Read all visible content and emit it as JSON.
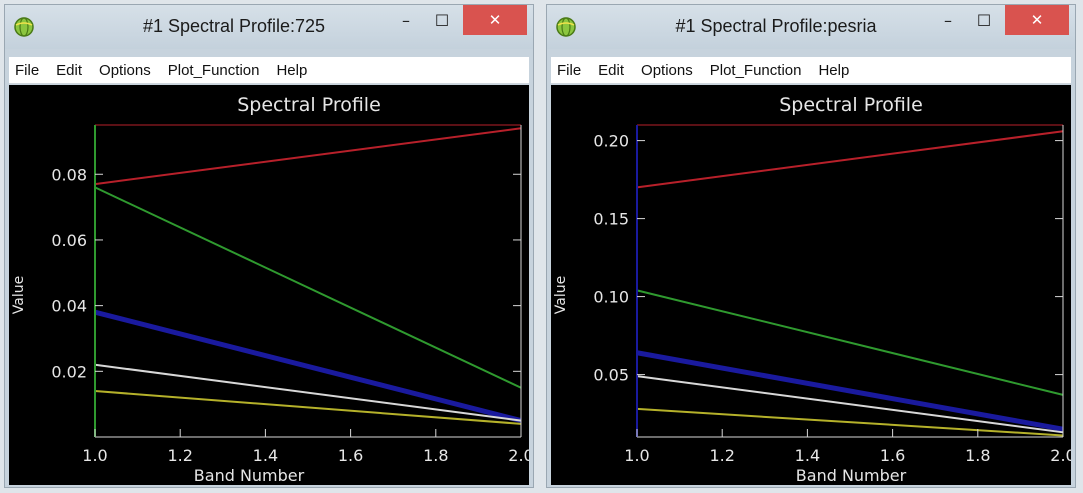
{
  "windows": [
    {
      "title": "#1 Spectral Profile:725",
      "controls": {
        "minimize": "–",
        "maximize": "☐",
        "close": "✕"
      },
      "menu": [
        "File",
        "Edit",
        "Options",
        "Plot_Function",
        "Help"
      ],
      "plot_title": "Spectral Profile",
      "xlabel": "Band Number",
      "ylabel": "Value",
      "y_ticks": [
        "0.02",
        "0.04",
        "0.06",
        "0.08"
      ],
      "x_ticks": [
        "1.0",
        "1.2",
        "1.4",
        "1.6",
        "1.8",
        "2.0"
      ]
    },
    {
      "title": "#1 Spectral Profile:pesria",
      "controls": {
        "minimize": "–",
        "maximize": "☐",
        "close": "✕"
      },
      "menu": [
        "File",
        "Edit",
        "Options",
        "Plot_Function",
        "Help"
      ],
      "plot_title": "Spectral Profile",
      "xlabel": "Band Number",
      "ylabel": "Value",
      "y_ticks": [
        "0.05",
        "0.10",
        "0.15",
        "0.20"
      ],
      "x_ticks": [
        "1.0",
        "1.2",
        "1.4",
        "1.6",
        "1.8",
        "2.0"
      ]
    }
  ],
  "chart_data": [
    {
      "type": "line",
      "title": "Spectral Profile",
      "xlabel": "Band Number",
      "ylabel": "Value",
      "xlim": [
        1.0,
        2.0
      ],
      "ylim": [
        0.0,
        0.095
      ],
      "y_ticks": [
        0.02,
        0.04,
        0.06,
        0.08
      ],
      "x_ticks": [
        1.0,
        1.2,
        1.4,
        1.6,
        1.8,
        2.0
      ],
      "x": [
        1.0,
        2.0
      ],
      "series": [
        {
          "color": "#b8202a",
          "values": [
            0.077,
            0.094
          ]
        },
        {
          "color": "#2f9a2f",
          "values": [
            0.076,
            0.015
          ]
        },
        {
          "color": "#1a1a9e",
          "values": [
            0.038,
            0.005
          ]
        },
        {
          "color": "#d8d8d8",
          "values": [
            0.022,
            0.005
          ]
        },
        {
          "color": "#b5b12a",
          "values": [
            0.014,
            0.004
          ]
        }
      ],
      "axis_colors": {
        "left": "#2f9a2f",
        "bottom": "#d8d8d8",
        "right": "#d8d8d8",
        "top": "#b8202a"
      }
    },
    {
      "type": "line",
      "title": "Spectral Profile",
      "xlabel": "Band Number",
      "ylabel": "Value",
      "xlim": [
        1.0,
        2.0
      ],
      "ylim": [
        0.01,
        0.21
      ],
      "y_ticks": [
        0.05,
        0.1,
        0.15,
        0.2
      ],
      "x_ticks": [
        1.0,
        1.2,
        1.4,
        1.6,
        1.8,
        2.0
      ],
      "x": [
        1.0,
        2.0
      ],
      "series": [
        {
          "color": "#b8202a",
          "values": [
            0.17,
            0.206
          ]
        },
        {
          "color": "#2f9a2f",
          "values": [
            0.104,
            0.037
          ]
        },
        {
          "color": "#1a1a9e",
          "values": [
            0.064,
            0.015
          ]
        },
        {
          "color": "#d8d8d8",
          "values": [
            0.049,
            0.013
          ]
        },
        {
          "color": "#b5b12a",
          "values": [
            0.028,
            0.011
          ]
        }
      ],
      "axis_colors": {
        "left": "#1a1a9e",
        "bottom": "#d8d8d8",
        "right": "#d8d8d8",
        "top": "#b8202a"
      }
    }
  ]
}
